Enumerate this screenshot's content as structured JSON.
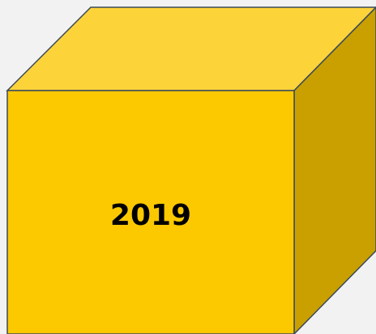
{
  "label": "2019"
}
